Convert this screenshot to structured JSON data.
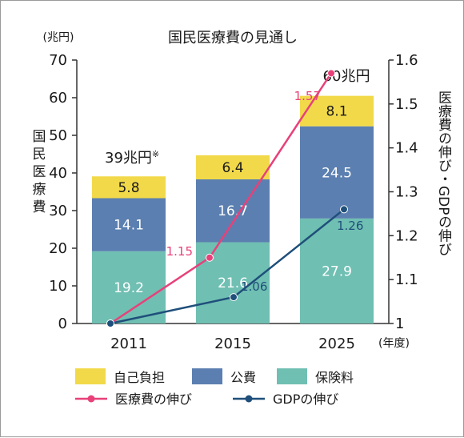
{
  "chart_data": {
    "type": "bar",
    "title": "国民医療費の見通し",
    "categories": [
      "2011",
      "2015",
      "2025"
    ],
    "x_unit": "(年度)",
    "ylabel_left": "国民医療費",
    "ylabel_left_unit": "(兆円)",
    "ylim_left": [
      0,
      70
    ],
    "yticks_left": [
      0,
      10,
      20,
      30,
      40,
      50,
      60,
      70
    ],
    "ylabel_right": "医療費の伸び・GDPの伸び",
    "ylim_right": [
      1,
      1.6
    ],
    "yticks_right": [
      "1",
      "1.1",
      "1.2",
      "1.3",
      "1.4",
      "1.5",
      "1.6"
    ],
    "stacked_series": [
      {
        "name": "保険料",
        "color": "#6fbfb2",
        "values": [
          19.2,
          21.6,
          27.9
        ],
        "labels": [
          "19.2",
          "21.6",
          "27.9"
        ]
      },
      {
        "name": "公費",
        "color": "#5b7fb0",
        "values": [
          14.1,
          16.7,
          24.5
        ],
        "labels": [
          "14.1",
          "16.7",
          "24.5"
        ]
      },
      {
        "name": "自己負担",
        "color": "#f2d94a",
        "values": [
          5.8,
          6.4,
          8.1
        ],
        "labels": [
          "5.8",
          "6.4",
          "8.1"
        ]
      }
    ],
    "totals": [
      "39兆円",
      "",
      "60兆円"
    ],
    "totals_note": "※",
    "line_series": [
      {
        "name": "医療費の伸び",
        "color": "#e8417a",
        "values": [
          1,
          1.15,
          1.57
        ],
        "labels": [
          "",
          "1.15",
          "1.57"
        ]
      },
      {
        "name": "GDPの伸び",
        "color": "#1f4f7a",
        "values": [
          1,
          1.06,
          1.26
        ],
        "labels": [
          "",
          "1.06",
          "1.26"
        ]
      }
    ],
    "legend_order": [
      "自己負担",
      "公費",
      "保険料"
    ],
    "legend_placement": "bottom"
  }
}
